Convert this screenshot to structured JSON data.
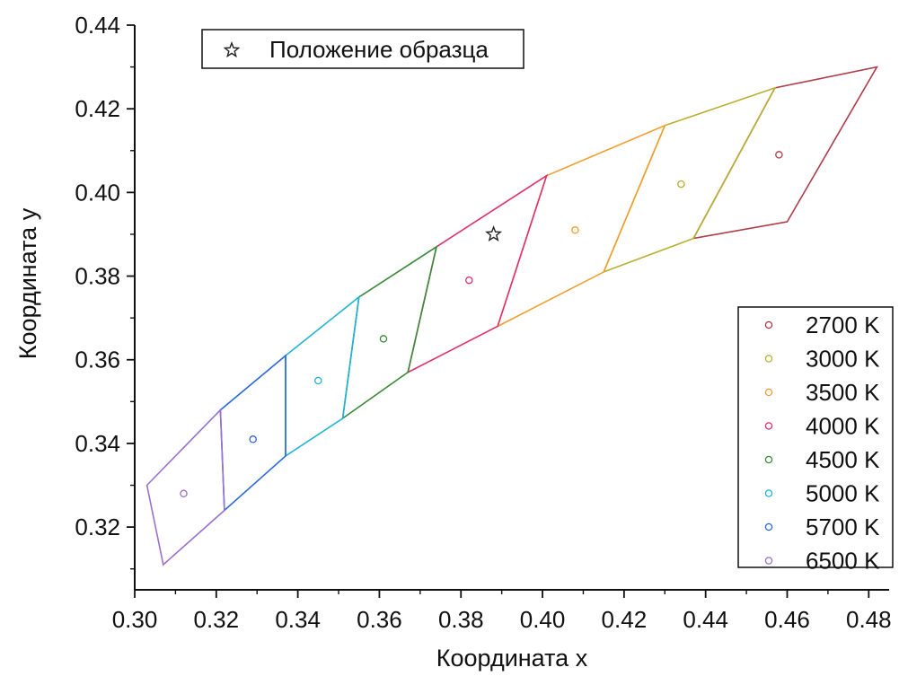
{
  "chart_data": {
    "type": "scatter",
    "xlabel": "Координата x",
    "ylabel": "Координата y",
    "xlim": [
      0.3,
      0.485
    ],
    "ylim": [
      0.305,
      0.44
    ],
    "x_ticks": [
      "0.30",
      "0.32",
      "0.34",
      "0.36",
      "0.38",
      "0.40",
      "0.42",
      "0.44",
      "0.46",
      "0.48"
    ],
    "y_ticks": [
      "0.32",
      "0.34",
      "0.36",
      "0.38",
      "0.40",
      "0.42",
      "0.44"
    ],
    "grid": false,
    "sample": {
      "name": "Положение образца",
      "x": 0.388,
      "y": 0.39,
      "marker": "star",
      "legend_position": "top-left"
    },
    "series": [
      {
        "name": "2700 K",
        "color": "#b03a48",
        "center": [
          0.458,
          0.409
        ],
        "quad": [
          [
            0.457,
            0.425
          ],
          [
            0.482,
            0.43
          ],
          [
            0.46,
            0.393
          ],
          [
            0.437,
            0.389
          ]
        ]
      },
      {
        "name": "3000 K",
        "color": "#b8b030",
        "center": [
          0.434,
          0.402
        ],
        "quad": [
          [
            0.43,
            0.416
          ],
          [
            0.457,
            0.425
          ],
          [
            0.437,
            0.389
          ],
          [
            0.415,
            0.381
          ]
        ]
      },
      {
        "name": "3500 K",
        "color": "#f0a030",
        "center": [
          0.408,
          0.391
        ],
        "quad": [
          [
            0.401,
            0.404
          ],
          [
            0.43,
            0.416
          ],
          [
            0.415,
            0.381
          ],
          [
            0.389,
            0.368
          ]
        ]
      },
      {
        "name": "4000 K",
        "color": "#e0306a",
        "center": [
          0.382,
          0.379
        ],
        "quad": [
          [
            0.374,
            0.387
          ],
          [
            0.401,
            0.404
          ],
          [
            0.389,
            0.368
          ],
          [
            0.367,
            0.357
          ]
        ]
      },
      {
        "name": "4500 K",
        "color": "#3a8a3a",
        "center": [
          0.361,
          0.365
        ],
        "quad": [
          [
            0.355,
            0.375
          ],
          [
            0.374,
            0.387
          ],
          [
            0.367,
            0.357
          ],
          [
            0.351,
            0.346
          ]
        ]
      },
      {
        "name": "5000 K",
        "color": "#20b4d4",
        "center": [
          0.345,
          0.355
        ],
        "quad": [
          [
            0.337,
            0.361
          ],
          [
            0.355,
            0.375
          ],
          [
            0.351,
            0.346
          ],
          [
            0.337,
            0.337
          ]
        ]
      },
      {
        "name": "5700 K",
        "color": "#2a6ad8",
        "center": [
          0.329,
          0.341
        ],
        "quad": [
          [
            0.321,
            0.348
          ],
          [
            0.337,
            0.361
          ],
          [
            0.337,
            0.337
          ],
          [
            0.322,
            0.324
          ]
        ]
      },
      {
        "name": "6500 K",
        "color": "#9a70d0",
        "center": [
          0.312,
          0.328
        ],
        "quad": [
          [
            0.303,
            0.33
          ],
          [
            0.321,
            0.348
          ],
          [
            0.322,
            0.324
          ],
          [
            0.307,
            0.311
          ]
        ]
      }
    ],
    "legend_position": "bottom-right"
  }
}
